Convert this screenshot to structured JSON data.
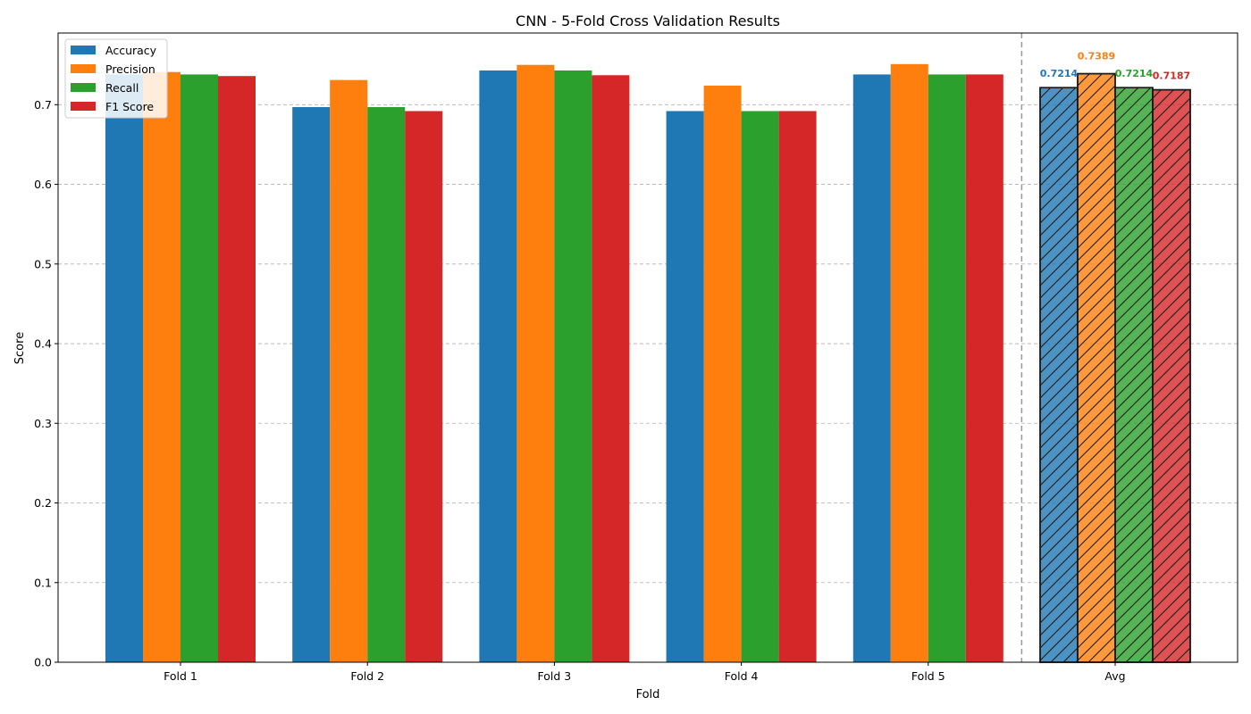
{
  "chart_data": {
    "type": "bar",
    "title": "CNN - 5-Fold Cross Validation Results",
    "xlabel": "Fold",
    "ylabel": "Score",
    "ylim": [
      0,
      0.79
    ],
    "yticks": [
      "0.0",
      "0.1",
      "0.2",
      "0.3",
      "0.4",
      "0.5",
      "0.6",
      "0.7"
    ],
    "grid": true,
    "legend_position": "top-left",
    "categories": [
      "Fold 1",
      "Fold 2",
      "Fold 3",
      "Fold 4",
      "Fold 5",
      "Avg"
    ],
    "series": [
      {
        "name": "Accuracy",
        "color": "#1f77b4",
        "values": [
          0.738,
          0.697,
          0.743,
          0.692,
          0.738,
          0.7214
        ]
      },
      {
        "name": "Precision",
        "color": "#ff7f0e",
        "values": [
          0.741,
          0.731,
          0.75,
          0.724,
          0.751,
          0.7389
        ]
      },
      {
        "name": "Recall",
        "color": "#2ca02c",
        "values": [
          0.738,
          0.697,
          0.743,
          0.692,
          0.738,
          0.7214
        ]
      },
      {
        "name": "F1 Score",
        "color": "#d62728",
        "values": [
          0.736,
          0.692,
          0.737,
          0.692,
          0.738,
          0.7187
        ]
      }
    ],
    "average_labels": [
      "0.7214",
      "0.7389",
      "0.7214",
      "0.7187"
    ]
  }
}
